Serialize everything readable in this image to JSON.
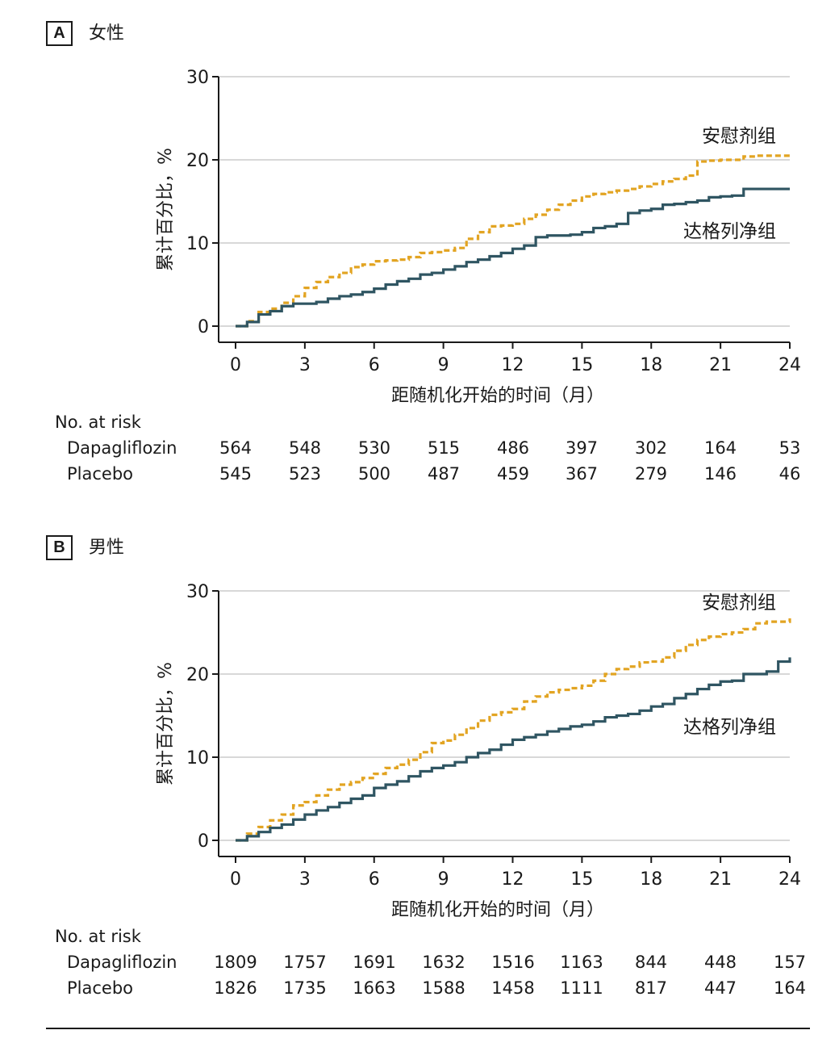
{
  "colors": {
    "placebo": "#E2A422",
    "dapagliflozin": "#2F5562",
    "axis": "#1a1a1a",
    "grid": "#cccccc"
  },
  "panels": [
    {
      "letter": "A",
      "title": "女性",
      "risk_header": "No. at risk",
      "risk_rows": [
        {
          "label": "Dapagliflozin",
          "values": [
            "564",
            "548",
            "530",
            "515",
            "486",
            "397",
            "302",
            "164",
            "53"
          ]
        },
        {
          "label": "Placebo",
          "values": [
            "545",
            "523",
            "500",
            "487",
            "459",
            "367",
            "279",
            "146",
            "46"
          ]
        }
      ]
    },
    {
      "letter": "B",
      "title": "男性",
      "risk_header": "No. at risk",
      "risk_rows": [
        {
          "label": "Dapagliflozin",
          "values": [
            "1809",
            "1757",
            "1691",
            "1632",
            "1516",
            "1163",
            "844",
            "448",
            "157"
          ]
        },
        {
          "label": "Placebo",
          "values": [
            "1826",
            "1735",
            "1663",
            "1588",
            "1458",
            "1111",
            "817",
            "447",
            "164"
          ]
        }
      ]
    }
  ],
  "chart_data": [
    {
      "type": "line",
      "title": "女性",
      "xlabel": "距随机化开始的时间（月）",
      "ylabel": "累计百分比，%",
      "xlim": [
        0,
        24
      ],
      "ylim": [
        0,
        30
      ],
      "xticks": [
        0,
        3,
        6,
        9,
        12,
        15,
        18,
        21,
        24
      ],
      "yticks": [
        0,
        10,
        20,
        30
      ],
      "grid": true,
      "series": [
        {
          "name": "安慰剂组",
          "style": "dashed",
          "x": [
            0,
            0.5,
            1,
            1.5,
            2,
            2.5,
            3,
            3.5,
            4,
            4.5,
            5,
            5.5,
            6,
            6.5,
            7,
            7.5,
            8,
            8.5,
            9,
            9.5,
            10,
            10.5,
            11,
            11.5,
            12,
            12.5,
            13,
            13.5,
            14,
            14.5,
            15,
            15.5,
            16,
            16.5,
            17,
            17.5,
            18,
            18.5,
            19,
            19.5,
            20,
            20.5,
            21,
            21.5,
            22,
            22.5,
            23,
            24
          ],
          "y": [
            0,
            0.6,
            1.7,
            2.1,
            2.8,
            3.6,
            4.6,
            5.3,
            5.9,
            6.4,
            7.1,
            7.4,
            7.8,
            7.9,
            8.0,
            8.3,
            8.8,
            8.9,
            9.1,
            9.4,
            10.5,
            11.3,
            12.0,
            12.1,
            12.3,
            12.9,
            13.4,
            14.0,
            14.6,
            15.1,
            15.6,
            15.9,
            16.1,
            16.3,
            16.5,
            16.8,
            17.1,
            17.4,
            17.7,
            18.1,
            19.8,
            19.9,
            20.0,
            20.0,
            20.4,
            20.5,
            20.5,
            20.5
          ]
        },
        {
          "name": "达格列净组",
          "style": "solid",
          "x": [
            0,
            0.5,
            1,
            1.5,
            2,
            2.5,
            3,
            3.5,
            4,
            4.5,
            5,
            5.5,
            6,
            6.5,
            7,
            7.5,
            8,
            8.5,
            9,
            9.5,
            10,
            10.5,
            11,
            11.5,
            12,
            12.5,
            13,
            13.5,
            14,
            14.5,
            15,
            15.5,
            16,
            16.5,
            17,
            17.5,
            18,
            18.5,
            19,
            19.5,
            20,
            20.5,
            21,
            21.5,
            22,
            23,
            24
          ],
          "y": [
            0,
            0.5,
            1.4,
            1.8,
            2.4,
            2.7,
            2.7,
            2.9,
            3.3,
            3.6,
            3.8,
            4.1,
            4.5,
            5.0,
            5.4,
            5.7,
            6.2,
            6.4,
            6.8,
            7.2,
            7.7,
            8.0,
            8.4,
            8.8,
            9.3,
            9.7,
            10.7,
            10.9,
            10.9,
            11.0,
            11.3,
            11.8,
            12.0,
            12.3,
            13.6,
            13.9,
            14.1,
            14.6,
            14.7,
            14.9,
            15.1,
            15.5,
            15.6,
            15.7,
            16.5,
            16.5,
            16.5
          ]
        }
      ],
      "annotations": [
        "安慰剂组",
        "达格列净组"
      ]
    },
    {
      "type": "line",
      "title": "男性",
      "xlabel": "距随机化开始的时间（月）",
      "ylabel": "累计百分比，%",
      "xlim": [
        0,
        24
      ],
      "ylim": [
        0,
        30
      ],
      "xticks": [
        0,
        3,
        6,
        9,
        12,
        15,
        18,
        21,
        24
      ],
      "yticks": [
        0,
        10,
        20,
        30
      ],
      "grid": true,
      "series": [
        {
          "name": "安慰剂组",
          "style": "dashed",
          "x": [
            0,
            0.5,
            1,
            1.5,
            2,
            2.5,
            3,
            3.5,
            4,
            4.5,
            5,
            5.5,
            6,
            6.5,
            7,
            7.5,
            8,
            8.5,
            9,
            9.5,
            10,
            10.5,
            11,
            11.5,
            12,
            12.5,
            13,
            13.5,
            14,
            14.5,
            15,
            15.5,
            16,
            16.5,
            17,
            17.5,
            18,
            18.5,
            19,
            19.5,
            20,
            20.5,
            21,
            21.5,
            22,
            22.5,
            23,
            23.5,
            24
          ],
          "y": [
            0,
            0.8,
            1.6,
            2.4,
            3.1,
            4.2,
            4.6,
            5.4,
            6.1,
            6.7,
            7.0,
            7.5,
            8.0,
            8.7,
            9.1,
            9.7,
            10.6,
            11.7,
            12.0,
            12.7,
            13.5,
            14.4,
            15.1,
            15.4,
            15.8,
            16.7,
            17.3,
            17.8,
            18.1,
            18.3,
            18.6,
            19.2,
            20.0,
            20.6,
            20.9,
            21.4,
            21.5,
            22.0,
            22.8,
            23.5,
            24.1,
            24.5,
            24.8,
            25.0,
            25.4,
            26.1,
            26.3,
            26.3,
            26.7
          ]
        },
        {
          "name": "达格列净组",
          "style": "solid",
          "x": [
            0,
            0.5,
            1,
            1.5,
            2,
            2.5,
            3,
            3.5,
            4,
            4.5,
            5,
            5.5,
            6,
            6.5,
            7,
            7.5,
            8,
            8.5,
            9,
            9.5,
            10,
            10.5,
            11,
            11.5,
            12,
            12.5,
            13,
            13.5,
            14,
            14.5,
            15,
            15.5,
            16,
            16.5,
            17,
            17.5,
            18,
            18.5,
            19,
            19.5,
            20,
            20.5,
            21,
            21.5,
            22,
            22.5,
            23,
            23.5,
            24
          ],
          "y": [
            0,
            0.5,
            1.0,
            1.5,
            1.9,
            2.5,
            3.1,
            3.6,
            4.0,
            4.5,
            5.0,
            5.4,
            6.3,
            6.7,
            7.1,
            7.7,
            8.3,
            8.7,
            9.0,
            9.4,
            10.0,
            10.5,
            10.9,
            11.5,
            12.1,
            12.4,
            12.7,
            13.1,
            13.4,
            13.7,
            13.9,
            14.3,
            14.8,
            15.0,
            15.2,
            15.6,
            16.1,
            16.4,
            17.1,
            17.6,
            18.2,
            18.7,
            19.1,
            19.2,
            20.0,
            20.0,
            20.3,
            21.5,
            22.0
          ]
        }
      ],
      "annotations": [
        "安慰剂组",
        "达格列净组"
      ]
    }
  ]
}
